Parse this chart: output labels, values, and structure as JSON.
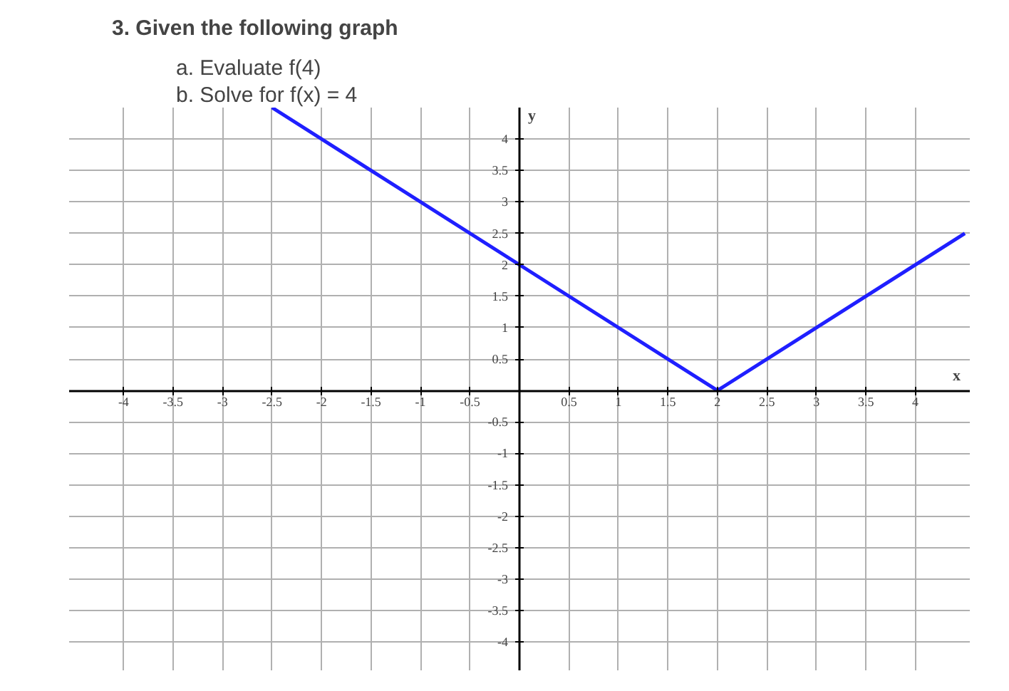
{
  "chart_data": {
    "type": "line",
    "title": "3. Given the following graph",
    "annotations": [
      "a. Evaluate f(4)",
      "b. Solve for f(x) = 4"
    ],
    "xlabel": "x",
    "ylabel": "y",
    "x": [
      -2.5,
      2,
      4.5
    ],
    "series": [
      {
        "color": "#1f1fff",
        "values": [
          4.5,
          0,
          2.5
        ]
      }
    ],
    "xlim": [
      -4.55,
      4.55
    ],
    "ylim": [
      -4.45,
      4.5
    ],
    "xticks": [
      -4,
      -3.5,
      -3,
      -2.5,
      -2,
      -1.5,
      -1,
      -0.5,
      0.5,
      1,
      1.5,
      2,
      2.5,
      3,
      3.5,
      4
    ],
    "yticks": [
      -4,
      -3.5,
      -3,
      -2.5,
      -2,
      -1.5,
      -1,
      -0.5,
      0.5,
      1,
      1.5,
      2,
      2.5,
      3,
      3.5,
      4
    ],
    "grid": true,
    "marker": "none",
    "line_style": "solid"
  }
}
